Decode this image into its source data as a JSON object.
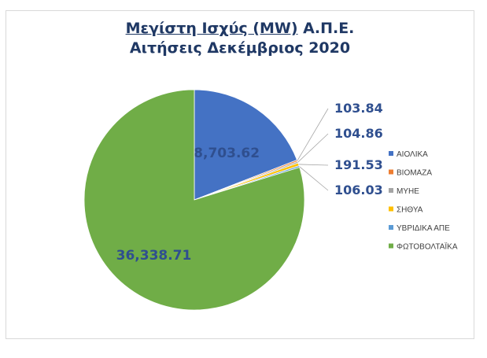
{
  "chart_data": {
    "type": "pie",
    "title_line1_underlined": "Μεγίστη Ισχύς (MW)",
    "title_line1_rest": " Α.Π.Ε.",
    "title_line2": "Αιτήσεις Δεκέμβριος 2020",
    "categories": [
      "ΑΙΟΛΙΚΑ",
      "ΒΙΟΜΑΖΑ",
      "ΜΥΗΕ",
      "ΣΗΘΥΑ",
      "ΥΒΡΙΔΙΚΑ ΑΠΕ",
      "ΦΩΤΟΒΟΛΤΑΪΚΑ"
    ],
    "values": [
      8703.62,
      103.84,
      104.86,
      191.53,
      106.03,
      36338.71
    ],
    "value_labels": [
      "8,703.62",
      "103.84",
      "104.86",
      "191.53",
      "106.03",
      "36,338.71"
    ],
    "colors": [
      "#4472c4",
      "#ed7d31",
      "#a5a5a5",
      "#ffc000",
      "#5b9bd5",
      "#70ad47"
    ],
    "legend_position": "right"
  }
}
